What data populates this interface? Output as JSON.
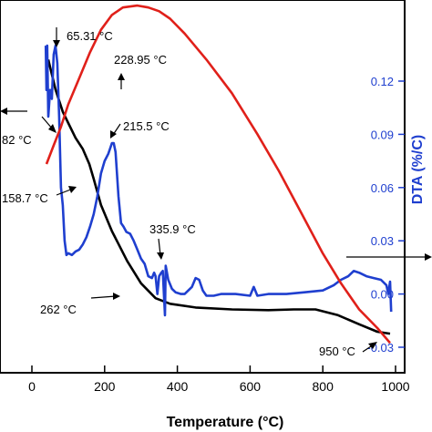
{
  "chart_data": {
    "type": "line",
    "xlabel": "Temperature (°C)",
    "ylabel_right": "DTA (%/C)",
    "xlim": [
      0,
      1000
    ],
    "x_ticks": [
      0,
      200,
      400,
      600,
      800,
      1000
    ],
    "ylim_right": [
      -0.035,
      0.16
    ],
    "y_ticks_right": [
      "0.12",
      "0.09",
      "0.06",
      "0.03",
      "0.00",
      "-0.03"
    ],
    "y_tick_values_right": [
      0.12,
      0.09,
      0.06,
      0.03,
      0.0,
      -0.03
    ],
    "colors": {
      "tg": "#000000",
      "dta": "#1f3fcf",
      "dsc": "#e0201a",
      "axis_right": "#1f3fcf"
    },
    "series": [
      {
        "key": "tg",
        "axis": "left",
        "points": [
          [
            45,
            0.84
          ],
          [
            65,
            0.76
          ],
          [
            85,
            0.7
          ],
          [
            100,
            0.67
          ],
          [
            120,
            0.63
          ],
          [
            140,
            0.6
          ],
          [
            158,
            0.56
          ],
          [
            170,
            0.52
          ],
          [
            190,
            0.45
          ],
          [
            220,
            0.38
          ],
          [
            262,
            0.3
          ],
          [
            300,
            0.24
          ],
          [
            340,
            0.2
          ],
          [
            380,
            0.185
          ],
          [
            450,
            0.175
          ],
          [
            550,
            0.17
          ],
          [
            650,
            0.168
          ],
          [
            720,
            0.17
          ],
          [
            780,
            0.17
          ],
          [
            840,
            0.155
          ],
          [
            900,
            0.13
          ],
          [
            950,
            0.11
          ],
          [
            985,
            0.105
          ]
        ]
      },
      {
        "key": "dta",
        "axis": "right",
        "points": [
          [
            38,
            0.14
          ],
          [
            40,
            0.115
          ],
          [
            42,
            0.14
          ],
          [
            45,
            0.1
          ],
          [
            50,
            0.115
          ],
          [
            55,
            0.11
          ],
          [
            60,
            0.135
          ],
          [
            65,
            0.14
          ],
          [
            70,
            0.13
          ],
          [
            75,
            0.1
          ],
          [
            80,
            0.06
          ],
          [
            85,
            0.05
          ],
          [
            90,
            0.03
          ],
          [
            95,
            0.022
          ],
          [
            100,
            0.023
          ],
          [
            110,
            0.022
          ],
          [
            120,
            0.024
          ],
          [
            130,
            0.025
          ],
          [
            140,
            0.028
          ],
          [
            150,
            0.032
          ],
          [
            160,
            0.038
          ],
          [
            170,
            0.045
          ],
          [
            180,
            0.055
          ],
          [
            190,
            0.068
          ],
          [
            200,
            0.075
          ],
          [
            210,
            0.079
          ],
          [
            215,
            0.082
          ],
          [
            220,
            0.085
          ],
          [
            225,
            0.085
          ],
          [
            230,
            0.08
          ],
          [
            238,
            0.055
          ],
          [
            245,
            0.04
          ],
          [
            252,
            0.038
          ],
          [
            260,
            0.035
          ],
          [
            270,
            0.034
          ],
          [
            280,
            0.03
          ],
          [
            290,
            0.025
          ],
          [
            300,
            0.02
          ],
          [
            310,
            0.017
          ],
          [
            320,
            0.01
          ],
          [
            330,
            0.009
          ],
          [
            336,
            0.012
          ],
          [
            340,
            0.01
          ],
          [
            345,
            0.0
          ],
          [
            350,
            0.01
          ],
          [
            356,
            0.012
          ],
          [
            360,
            0.013
          ],
          [
            366,
            -0.012
          ],
          [
            368,
            0.016
          ],
          [
            375,
            0.008
          ],
          [
            385,
            0.003
          ],
          [
            395,
            0.001
          ],
          [
            410,
            0.0
          ],
          [
            420,
            0.0
          ],
          [
            440,
            0.004
          ],
          [
            450,
            0.009
          ],
          [
            460,
            0.008
          ],
          [
            470,
            0.002
          ],
          [
            480,
            -0.001
          ],
          [
            500,
            -0.001
          ],
          [
            520,
            0.0
          ],
          [
            560,
            0.0
          ],
          [
            600,
            -0.001
          ],
          [
            610,
            0.004
          ],
          [
            620,
            -0.001
          ],
          [
            650,
            0.0
          ],
          [
            700,
            0.0
          ],
          [
            750,
            0.001
          ],
          [
            800,
            0.002
          ],
          [
            830,
            0.005
          ],
          [
            850,
            0.008
          ],
          [
            870,
            0.01
          ],
          [
            885,
            0.013
          ],
          [
            900,
            0.012
          ],
          [
            920,
            0.01
          ],
          [
            940,
            0.009
          ],
          [
            960,
            0.008
          ],
          [
            975,
            0.005
          ],
          [
            980,
            0.0
          ],
          [
            985,
            0.007
          ],
          [
            988,
            -0.01
          ]
        ]
      },
      {
        "key": "dsc",
        "axis": "left",
        "points": [
          [
            40,
            0.56
          ],
          [
            60,
            0.61
          ],
          [
            80,
            0.66
          ],
          [
            100,
            0.72
          ],
          [
            130,
            0.79
          ],
          [
            160,
            0.86
          ],
          [
            190,
            0.92
          ],
          [
            220,
            0.96
          ],
          [
            250,
            0.98
          ],
          [
            290,
            0.985
          ],
          [
            320,
            0.98
          ],
          [
            350,
            0.97
          ],
          [
            380,
            0.95
          ],
          [
            420,
            0.91
          ],
          [
            480,
            0.84
          ],
          [
            550,
            0.75
          ],
          [
            620,
            0.64
          ],
          [
            680,
            0.54
          ],
          [
            740,
            0.43
          ],
          [
            800,
            0.32
          ],
          [
            850,
            0.24
          ],
          [
            900,
            0.17
          ],
          [
            950,
            0.12
          ],
          [
            985,
            0.08
          ]
        ]
      }
    ],
    "annotations": [
      {
        "key": "a65",
        "text": "65.31 °C",
        "x": 65,
        "y_right": 0.155,
        "arrow_from": [
          70,
          0.162
        ],
        "arrow_to": [
          70,
          0.147
        ]
      },
      {
        "key": "a229",
        "text": "228.95 °C",
        "x": 229,
        "y_left": 1.0,
        "arrow_from": [
          233,
          0.955
        ],
        "arrow_to": [
          233,
          0.905
        ]
      },
      {
        "key": "a82",
        "text": "82 °C",
        "x": 0,
        "y_left": 0.72
      },
      {
        "key": "a215",
        "text": "215.5 °C",
        "x": 215,
        "y_right": 0.1
      },
      {
        "key": "a158",
        "text": "158.7 °C",
        "x": 0,
        "y_left": 0.52
      },
      {
        "key": "a336",
        "text": "335.9 °C",
        "x": 336,
        "y_right": 0.04
      },
      {
        "key": "a262",
        "text": "262 °C",
        "x": 262,
        "y_left": 0.28
      },
      {
        "key": "a950",
        "text": "950 °C",
        "x": 950,
        "y_left": 0.09
      }
    ]
  }
}
